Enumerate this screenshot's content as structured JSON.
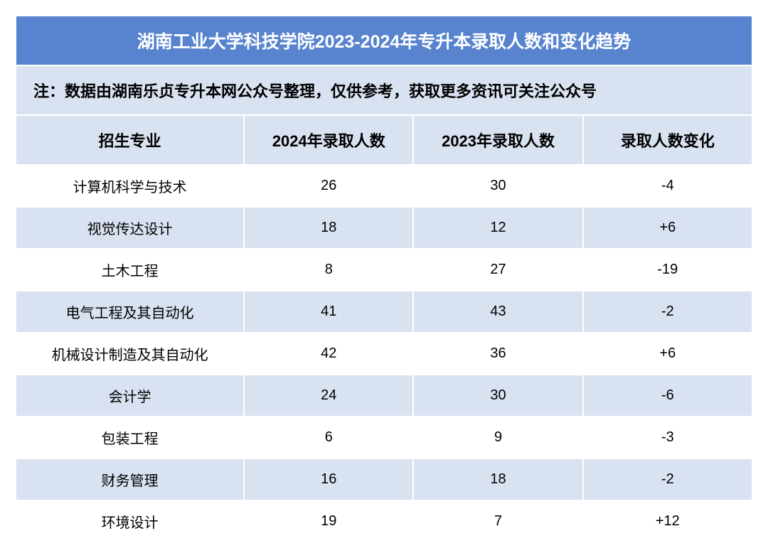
{
  "colors": {
    "title_bg": "#5884cf",
    "title_fg": "#ffffff",
    "band_bg": "#d9e2f1",
    "row_bg": "#ffffff",
    "text": "#000000",
    "border": "#ffffff"
  },
  "font": {
    "title_size": "25px",
    "note_size": "22px",
    "header_size": "22px",
    "cell_size": "20px"
  },
  "title": "湖南工业大学科技学院2023-2024年专升本录取人数和变化趋势",
  "note": "注：数据由湖南乐贞专升本网公众号整理，仅供参考，获取更多资讯可关注公众号",
  "columns": [
    "招生专业",
    "2024年录取人数",
    "2023年录取人数",
    "录取人数变化"
  ],
  "rows": [
    [
      "计算机科学与技术",
      "26",
      "30",
      "-4"
    ],
    [
      "视觉传达设计",
      "18",
      "12",
      "+6"
    ],
    [
      "土木工程",
      "8",
      "27",
      "-19"
    ],
    [
      "电气工程及其自动化",
      "41",
      "43",
      "-2"
    ],
    [
      "机械设计制造及其自动化",
      "42",
      "36",
      "+6"
    ],
    [
      "会计学",
      "24",
      "30",
      "-6"
    ],
    [
      "包装工程",
      "6",
      "9",
      "-3"
    ],
    [
      "财务管理",
      "16",
      "18",
      "-2"
    ],
    [
      "环境设计",
      "19",
      "7",
      "+12"
    ]
  ]
}
